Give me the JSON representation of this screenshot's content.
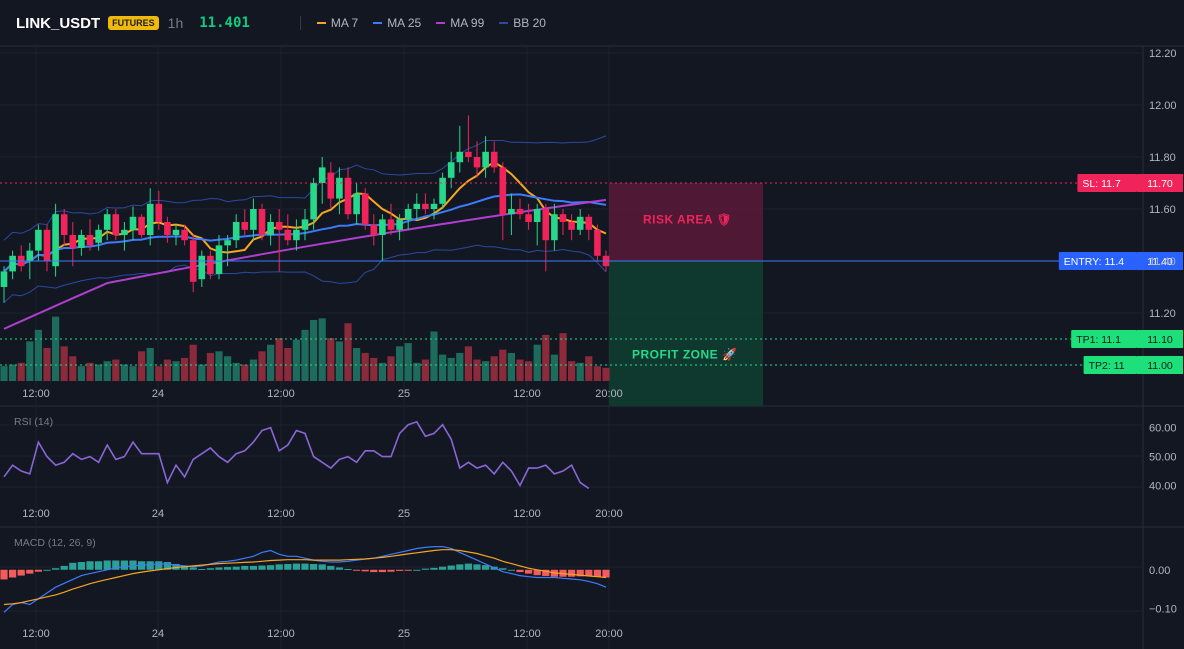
{
  "header": {
    "symbol": "LINK_USDT",
    "badge": "FUTURES",
    "timeframe": "1h",
    "last_price": "11.401",
    "legend": [
      {
        "label": "MA 7",
        "color": "#f5a623"
      },
      {
        "label": "MA 25",
        "color": "#3d7bfd"
      },
      {
        "label": "MA 99",
        "color": "#b03fcf"
      },
      {
        "label": "BB 20",
        "color": "#2a4aa0"
      }
    ]
  },
  "colors": {
    "background": "#131722",
    "up": "#26d98a",
    "down": "#f0245a",
    "vol_up": "#1c6b5c",
    "vol_down": "#8a2a3a",
    "rsi": "#8a66d6",
    "macd_line": "#3d7bfd",
    "signal_line": "#f5a623",
    "risk": "#f0245a",
    "profit": "#0ecb81",
    "entry": "#3d7bfd"
  },
  "chart_data": [
    {
      "type": "candlestick",
      "x_labels": [
        "12:00",
        "24",
        "12:00",
        "25",
        "12:00",
        "20:00"
      ],
      "y_ticks": [
        "12.20",
        "12.00",
        "11.80",
        "11.60",
        "11.40",
        "11.20",
        "11.00"
      ],
      "ylim": [
        10.92,
        12.22
      ],
      "candles": [
        [
          11.3,
          11.38,
          11.24,
          11.36
        ],
        [
          11.36,
          11.44,
          11.33,
          11.42
        ],
        [
          11.42,
          11.46,
          11.36,
          11.38
        ],
        [
          11.4,
          11.47,
          11.33,
          11.44
        ],
        [
          11.44,
          11.54,
          11.4,
          11.52
        ],
        [
          11.52,
          11.54,
          11.36,
          11.4
        ],
        [
          11.38,
          11.62,
          11.34,
          11.58
        ],
        [
          11.58,
          11.6,
          11.46,
          11.5
        ],
        [
          11.5,
          11.55,
          11.38,
          11.45
        ],
        [
          11.45,
          11.52,
          11.42,
          11.5
        ],
        [
          11.5,
          11.56,
          11.44,
          11.46
        ],
        [
          11.47,
          11.54,
          11.44,
          11.52
        ],
        [
          11.52,
          11.6,
          11.48,
          11.58
        ],
        [
          11.58,
          11.6,
          11.48,
          11.5
        ],
        [
          11.5,
          11.55,
          11.44,
          11.52
        ],
        [
          11.52,
          11.61,
          11.48,
          11.57
        ],
        [
          11.57,
          11.58,
          11.49,
          11.5
        ],
        [
          11.5,
          11.68,
          11.46,
          11.62
        ],
        [
          11.62,
          11.67,
          11.52,
          11.55
        ],
        [
          11.55,
          11.57,
          11.47,
          11.5
        ],
        [
          11.5,
          11.54,
          11.46,
          11.52
        ],
        [
          11.52,
          11.54,
          11.46,
          11.48
        ],
        [
          11.48,
          11.5,
          11.28,
          11.32
        ],
        [
          11.33,
          11.44,
          11.3,
          11.42
        ],
        [
          11.42,
          11.44,
          11.33,
          11.35
        ],
        [
          11.35,
          11.5,
          11.33,
          11.46
        ],
        [
          11.46,
          11.5,
          11.38,
          11.48
        ],
        [
          11.48,
          11.58,
          11.45,
          11.55
        ],
        [
          11.55,
          11.6,
          11.5,
          11.52
        ],
        [
          11.52,
          11.64,
          11.48,
          11.6
        ],
        [
          11.6,
          11.62,
          11.48,
          11.5
        ],
        [
          11.5,
          11.58,
          11.46,
          11.55
        ],
        [
          11.55,
          11.6,
          11.36,
          11.52
        ],
        [
          11.52,
          11.58,
          11.46,
          11.48
        ],
        [
          11.48,
          11.56,
          11.44,
          11.52
        ],
        [
          11.52,
          11.6,
          11.48,
          11.56
        ],
        [
          11.56,
          11.72,
          11.52,
          11.7
        ],
        [
          11.7,
          11.8,
          11.62,
          11.76
        ],
        [
          11.74,
          11.78,
          11.6,
          11.64
        ],
        [
          11.64,
          11.76,
          11.58,
          11.72
        ],
        [
          11.72,
          11.76,
          11.56,
          11.58
        ],
        [
          11.58,
          11.7,
          11.54,
          11.66
        ],
        [
          11.66,
          11.68,
          11.52,
          11.54
        ],
        [
          11.54,
          11.58,
          11.46,
          11.5
        ],
        [
          11.5,
          11.58,
          11.4,
          11.56
        ],
        [
          11.56,
          11.62,
          11.5,
          11.52
        ],
        [
          11.52,
          11.58,
          11.48,
          11.56
        ],
        [
          11.56,
          11.62,
          11.52,
          11.6
        ],
        [
          11.6,
          11.66,
          11.56,
          11.62
        ],
        [
          11.62,
          11.66,
          11.58,
          11.6
        ],
        [
          11.6,
          11.64,
          11.56,
          11.62
        ],
        [
          11.62,
          11.74,
          11.6,
          11.72
        ],
        [
          11.72,
          11.82,
          11.68,
          11.78
        ],
        [
          11.78,
          11.92,
          11.74,
          11.82
        ],
        [
          11.82,
          11.96,
          11.78,
          11.8
        ],
        [
          11.8,
          11.86,
          11.72,
          11.76
        ],
        [
          11.76,
          11.88,
          11.72,
          11.82
        ],
        [
          11.82,
          11.86,
          11.74,
          11.76
        ],
        [
          11.76,
          11.78,
          11.48,
          11.58
        ],
        [
          11.58,
          11.66,
          11.5,
          11.6
        ],
        [
          11.6,
          11.64,
          11.56,
          11.58
        ],
        [
          11.58,
          11.62,
          11.52,
          11.55
        ],
        [
          11.55,
          11.62,
          11.46,
          11.6
        ],
        [
          11.6,
          11.62,
          11.36,
          11.48
        ],
        [
          11.48,
          11.62,
          11.44,
          11.58
        ],
        [
          11.58,
          11.6,
          11.5,
          11.55
        ],
        [
          11.55,
          11.58,
          11.48,
          11.52
        ],
        [
          11.52,
          11.6,
          11.5,
          11.57
        ],
        [
          11.57,
          11.58,
          11.48,
          11.52
        ],
        [
          11.52,
          11.54,
          11.4,
          11.42
        ],
        [
          11.42,
          11.44,
          11.36,
          11.38
        ]
      ],
      "ma_periods": [
        7,
        25,
        99
      ],
      "bb_period": 20,
      "volume": [
        18,
        20,
        22,
        48,
        62,
        40,
        78,
        42,
        30,
        18,
        22,
        20,
        24,
        26,
        20,
        18,
        36,
        40,
        18,
        26,
        24,
        28,
        44,
        20,
        34,
        36,
        30,
        22,
        20,
        26,
        36,
        44,
        52,
        40,
        50,
        62,
        74,
        76,
        52,
        48,
        70,
        40,
        34,
        28,
        22,
        30,
        42,
        46,
        22,
        26,
        60,
        32,
        28,
        34,
        42,
        26,
        24,
        30,
        38,
        34,
        26,
        24,
        44,
        56,
        32,
        58,
        24,
        22,
        30,
        18,
        16
      ],
      "levels": {
        "sl": {
          "price": 11.7,
          "label": "SL: 11.7",
          "value": "11.70"
        },
        "entry": {
          "price": 11.4,
          "label": "ENTRY: 11.4",
          "value": "11.40"
        },
        "tp1": {
          "price": 11.1,
          "label": "TP1: 11.1",
          "value": "11.10"
        },
        "tp2": {
          "price": 11.0,
          "label": "TP2: 11",
          "value": "11.00"
        }
      },
      "zones": {
        "risk_label": "RISK AREA",
        "profit_label": "PROFIT ZONE"
      }
    },
    {
      "type": "line",
      "title": "RSI (14)",
      "y_ticks": [
        "60.00",
        "50.00",
        "40.00"
      ],
      "ylim": [
        35,
        64
      ],
      "values": [
        43,
        47,
        45,
        44,
        55,
        50,
        47,
        48,
        51,
        49,
        50,
        48,
        54,
        49,
        50,
        55,
        51,
        51,
        51,
        41,
        47,
        43,
        49,
        51,
        53,
        50,
        48,
        51,
        52,
        55,
        59,
        60,
        52,
        54,
        59,
        58,
        50,
        48,
        46,
        49,
        50,
        48,
        52,
        52,
        50,
        50,
        58,
        61,
        62,
        57,
        58,
        61,
        56,
        46,
        48,
        46,
        47,
        44,
        48,
        45,
        40,
        46,
        46,
        47,
        44,
        45,
        47,
        41,
        39
      ],
      "x_labels": [
        "12:00",
        "24",
        "12:00",
        "25",
        "12:00",
        "20:00"
      ]
    },
    {
      "type": "bar",
      "title": "MACD (12, 26, 9)",
      "y_ticks": [
        "0.00",
        "−0.10"
      ],
      "ylim": [
        -0.13,
        0.09
      ],
      "histogram": [
        -0.025,
        -0.02,
        -0.015,
        -0.01,
        -0.005,
        0.0,
        0.004,
        0.01,
        0.018,
        0.02,
        0.022,
        0.022,
        0.024,
        0.024,
        0.024,
        0.024,
        0.022,
        0.022,
        0.022,
        0.02,
        0.015,
        0.01,
        0.006,
        0.002,
        0.004,
        0.006,
        0.007,
        0.008,
        0.01,
        0.01,
        0.011,
        0.012,
        0.014,
        0.015,
        0.016,
        0.016,
        0.015,
        0.014,
        0.01,
        0.006,
        0.002,
        -0.002,
        -0.004,
        -0.006,
        -0.006,
        -0.005,
        -0.003,
        -0.002,
        0.0,
        0.003,
        0.005,
        0.008,
        0.011,
        0.014,
        0.016,
        0.014,
        0.012,
        0.008,
        0.004,
        0.0,
        -0.006,
        -0.01,
        -0.014,
        -0.016,
        -0.018,
        -0.018,
        -0.018,
        -0.017,
        -0.016,
        -0.018,
        -0.02
      ],
      "macd": [
        -0.11,
        -0.09,
        -0.085,
        -0.09,
        -0.075,
        -0.06,
        -0.045,
        -0.035,
        -0.025,
        -0.015,
        -0.01,
        -0.005,
        0.0,
        0.005,
        0.008,
        0.01,
        0.012,
        0.013,
        0.015,
        0.015,
        0.012,
        0.01,
        0.008,
        0.01,
        0.015,
        0.02,
        0.022,
        0.025,
        0.03,
        0.035,
        0.045,
        0.05,
        0.04,
        0.035,
        0.035,
        0.03,
        0.025,
        0.022,
        0.02,
        0.02,
        0.022,
        0.025,
        0.028,
        0.03,
        0.035,
        0.04,
        0.045,
        0.05,
        0.055,
        0.058,
        0.06,
        0.06,
        0.055,
        0.045,
        0.035,
        0.025,
        0.015,
        0.005,
        -0.005,
        -0.01,
        -0.015,
        -0.018,
        -0.02,
        -0.02,
        -0.02,
        -0.022,
        -0.024,
        -0.026,
        -0.03,
        -0.036,
        -0.045
      ],
      "signal": [
        -0.09,
        -0.088,
        -0.085,
        -0.08,
        -0.075,
        -0.07,
        -0.065,
        -0.058,
        -0.05,
        -0.043,
        -0.036,
        -0.03,
        -0.025,
        -0.02,
        -0.015,
        -0.01,
        -0.006,
        -0.003,
        0.0,
        0.003,
        0.006,
        0.008,
        0.01,
        0.012,
        0.014,
        0.016,
        0.017,
        0.018,
        0.019,
        0.02,
        0.022,
        0.024,
        0.025,
        0.026,
        0.026,
        0.026,
        0.025,
        0.025,
        0.025,
        0.025,
        0.026,
        0.027,
        0.028,
        0.03,
        0.032,
        0.035,
        0.038,
        0.041,
        0.044,
        0.047,
        0.05,
        0.052,
        0.052,
        0.05,
        0.046,
        0.042,
        0.036,
        0.03,
        0.022,
        0.016,
        0.01,
        0.004,
        0.0,
        -0.004,
        -0.008,
        -0.01,
        -0.012,
        -0.014,
        -0.016,
        -0.018,
        -0.02
      ],
      "x_labels": [
        "12:00",
        "24",
        "12:00",
        "25",
        "12:00",
        "20:00"
      ]
    }
  ]
}
